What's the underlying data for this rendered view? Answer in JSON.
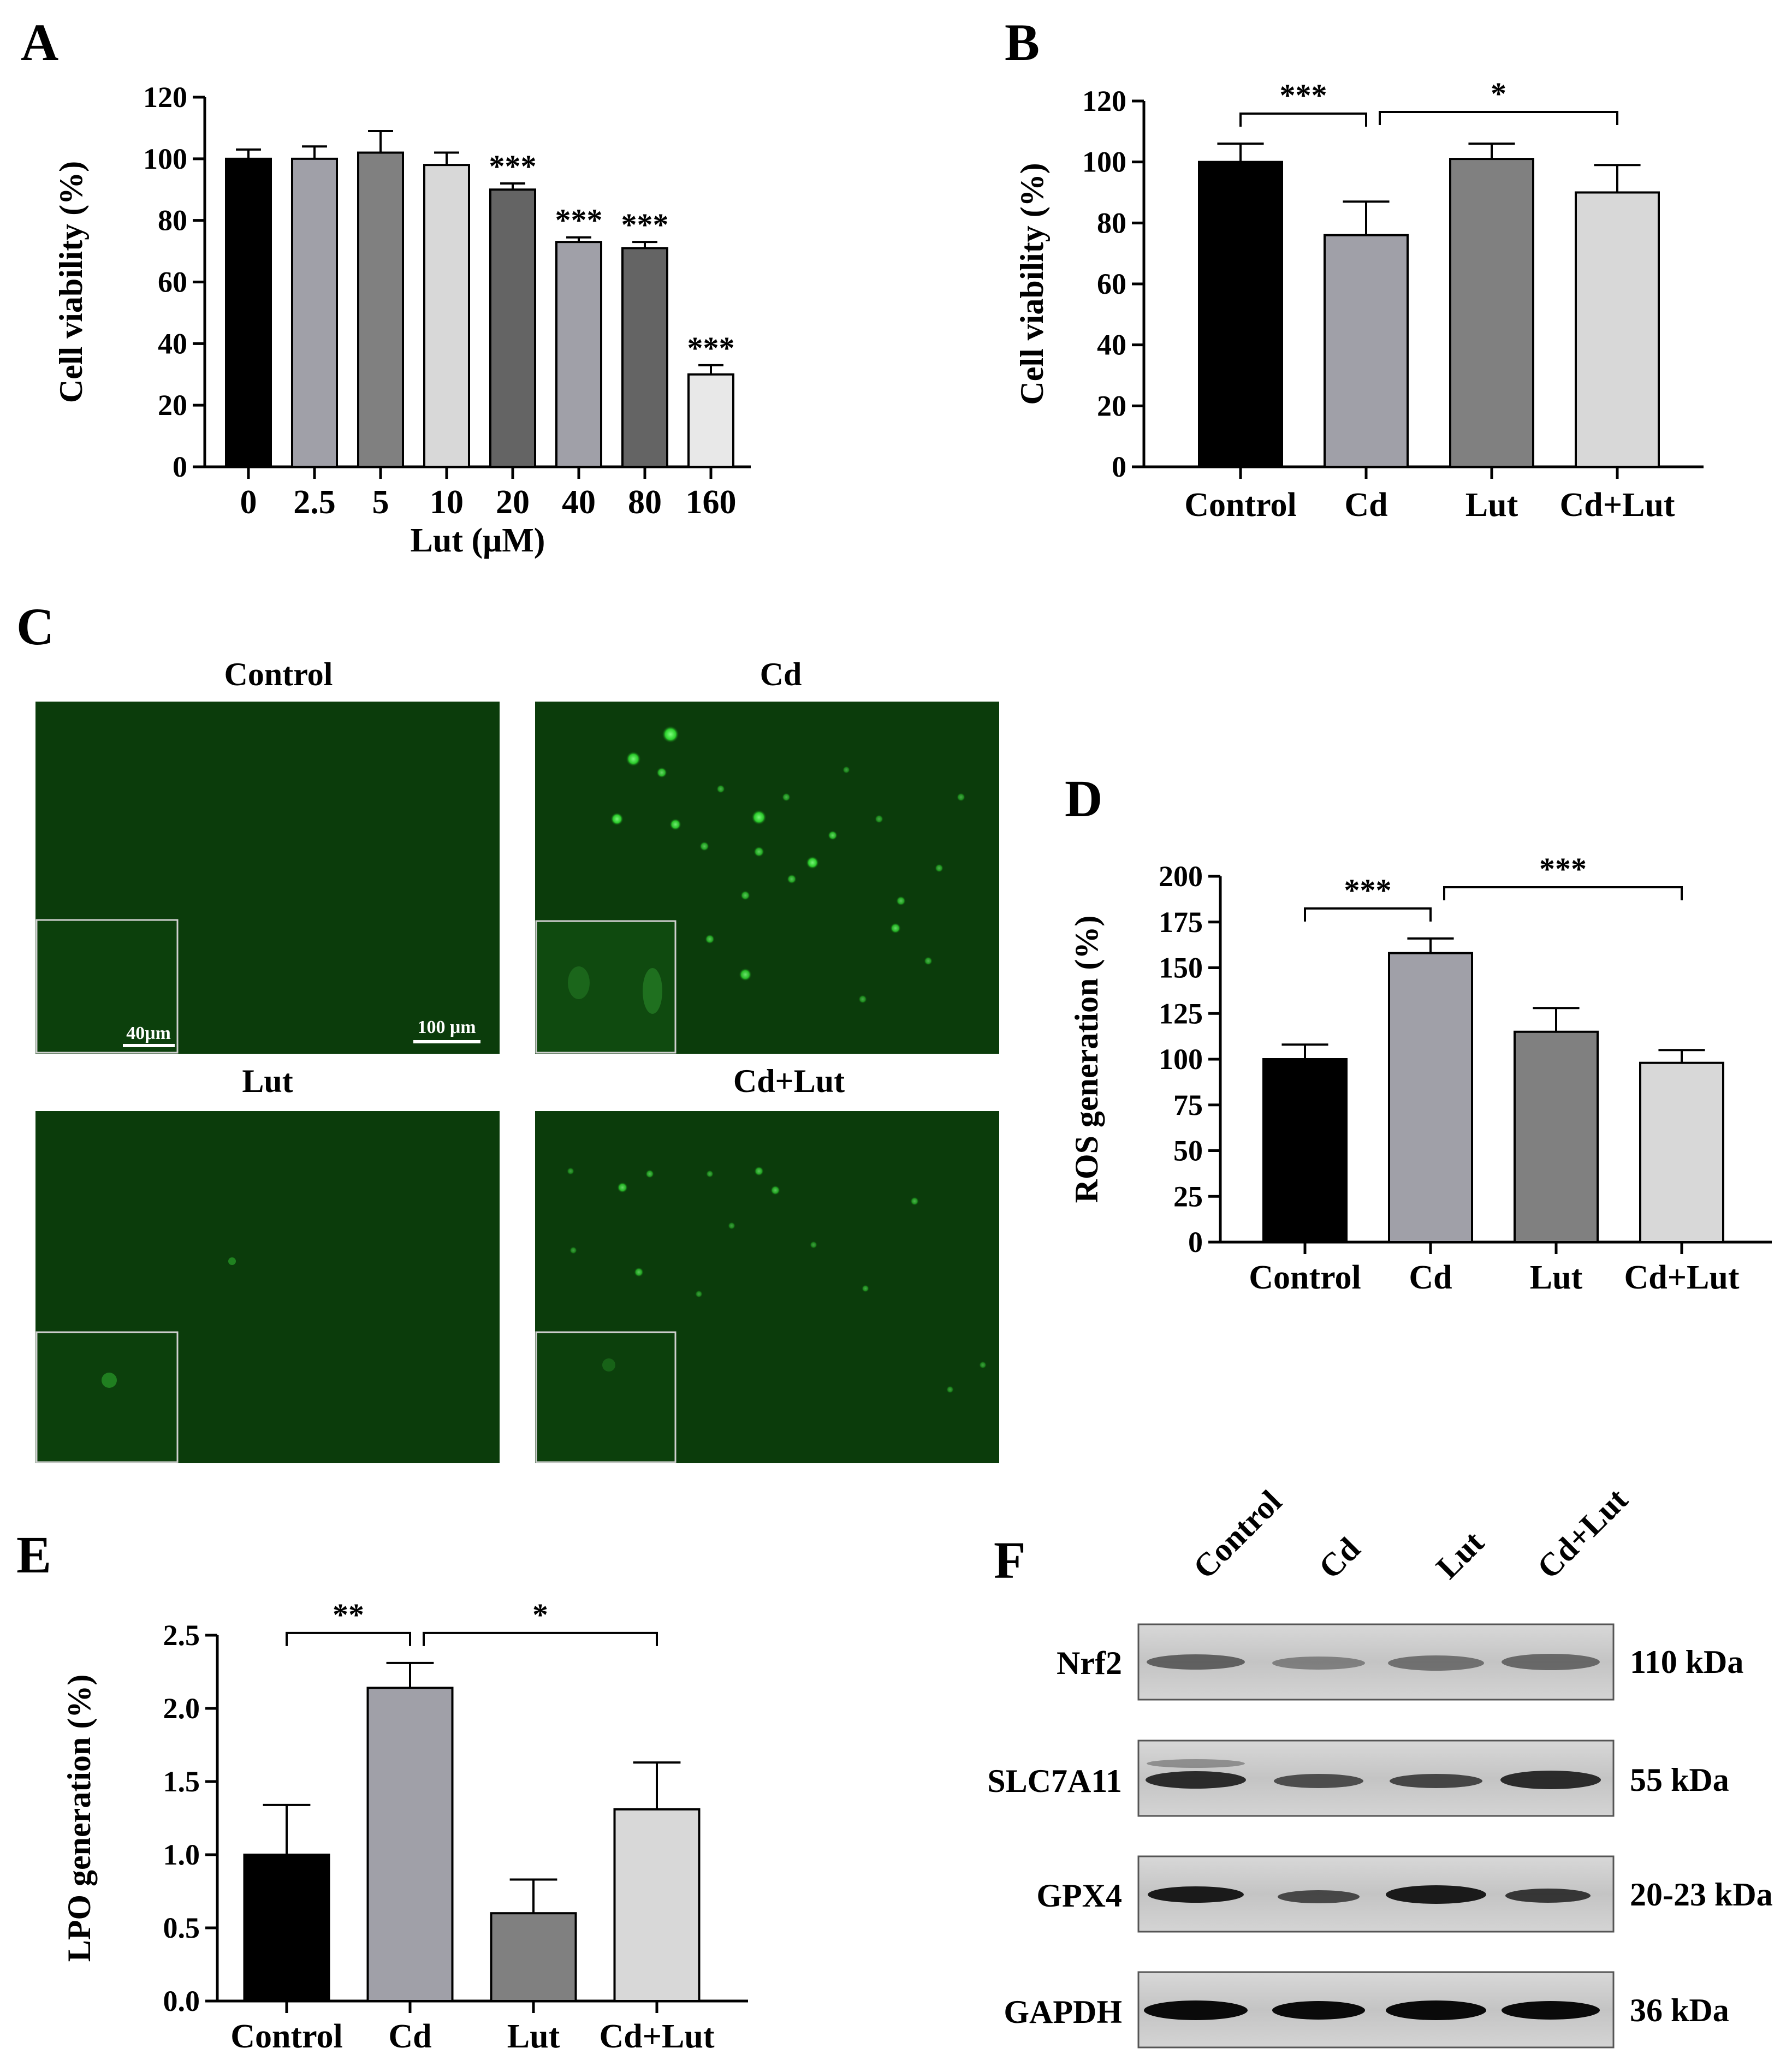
{
  "panels": {
    "A": {
      "letter": "A"
    },
    "B": {
      "letter": "B"
    },
    "C": {
      "letter": "C"
    },
    "D": {
      "letter": "D"
    },
    "E": {
      "letter": "E"
    },
    "F": {
      "letter": "F"
    }
  },
  "colors": {
    "black": "#000000",
    "dark_gray": "#646464",
    "mid_gray": "#808080",
    "light_gray": "#a0a0a8",
    "pale_gray": "#d8d8d8",
    "fluor_bg": "#0a3a0a",
    "fluor_cell": "#3cff3c"
  },
  "chart_data": [
    {
      "id": "A",
      "type": "bar",
      "categories": [
        "0",
        "2.5",
        "5",
        "10",
        "20",
        "40",
        "80",
        "160"
      ],
      "values": [
        100,
        100,
        102,
        98,
        90,
        73,
        71,
        30
      ],
      "errors": [
        3,
        4,
        7,
        4,
        2,
        1.5,
        2,
        3
      ],
      "significance": [
        "",
        "",
        "",
        "",
        "***",
        "***",
        "***",
        "***"
      ],
      "bar_colors": [
        "#000000",
        "#a0a0a8",
        "#808080",
        "#d8d8d8",
        "#646464",
        "#a0a0a8",
        "#646464",
        "#e8e8e8"
      ],
      "xlabel": "Lut (μM)",
      "ylabel": "Cell viability (%)",
      "yticks": [
        "0",
        "20",
        "40",
        "60",
        "80",
        "100",
        "120"
      ],
      "ylim": [
        0,
        120
      ]
    },
    {
      "id": "B",
      "type": "bar",
      "categories": [
        "Control",
        "Cd",
        "Lut",
        "Cd+Lut"
      ],
      "values": [
        100,
        76,
        101,
        90
      ],
      "errors": [
        6,
        11,
        5,
        9
      ],
      "bar_colors": [
        "#000000",
        "#a0a0a8",
        "#808080",
        "#d8d8d8"
      ],
      "brackets": [
        {
          "from": 0,
          "to": 1,
          "label": "***"
        },
        {
          "from": 1,
          "to": 3,
          "label": "*"
        }
      ],
      "ylabel": "Cell viability (%)",
      "yticks": [
        "0",
        "20",
        "40",
        "60",
        "80",
        "100",
        "120"
      ],
      "ylim": [
        0,
        120
      ]
    },
    {
      "id": "D",
      "type": "bar",
      "categories": [
        "Control",
        "Cd",
        "Lut",
        "Cd+Lut"
      ],
      "values": [
        100,
        158,
        115,
        98
      ],
      "errors": [
        8,
        8,
        13,
        7
      ],
      "bar_colors": [
        "#000000",
        "#a0a0a8",
        "#808080",
        "#d8d8d8"
      ],
      "brackets": [
        {
          "from": 0,
          "to": 1,
          "label": "***"
        },
        {
          "from": 1,
          "to": 3,
          "label": "***"
        }
      ],
      "ylabel": "ROS generation (%)",
      "yticks": [
        "0",
        "25",
        "50",
        "75",
        "100",
        "125",
        "150",
        "175",
        "200"
      ],
      "ylim": [
        0,
        200
      ]
    },
    {
      "id": "E",
      "type": "bar",
      "categories": [
        "Control",
        "Cd",
        "Lut",
        "Cd+Lut"
      ],
      "values": [
        1.0,
        2.14,
        0.6,
        1.31
      ],
      "errors": [
        0.34,
        0.17,
        0.23,
        0.32
      ],
      "bar_colors": [
        "#000000",
        "#a0a0a8",
        "#808080",
        "#d8d8d8"
      ],
      "brackets": [
        {
          "from": 0,
          "to": 1,
          "label": "**"
        },
        {
          "from": 1,
          "to": 3,
          "label": "*"
        }
      ],
      "ylabel": "LPO generation (%)",
      "yticks": [
        "0.0",
        "0.5",
        "1.0",
        "1.5",
        "2.0",
        "2.5"
      ],
      "ylim": [
        0,
        2.5
      ]
    }
  ],
  "fluorescence": {
    "titles": [
      "Control",
      "Cd",
      "Lut",
      "Cd+Lut"
    ],
    "inset_scale_label": "40μm",
    "main_scale_label": "100 μm"
  },
  "western": {
    "lanes": [
      "Control",
      "Cd",
      "Lut",
      "Cd+Lut"
    ],
    "proteins": [
      "Nrf2",
      "SLC7A11",
      "GPX4",
      "GAPDH"
    ],
    "sizes": [
      "110 kDa",
      "55 kDa",
      "20-23 kDa",
      "36 kDa"
    ]
  }
}
